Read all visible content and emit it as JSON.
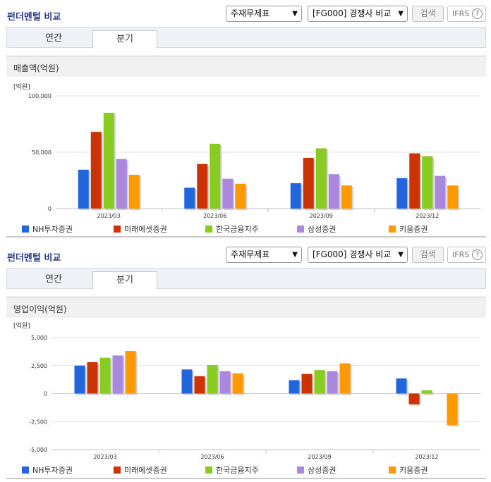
{
  "panels": [
    {
      "title": "펀더멘털 비교",
      "select_1": "주재무제표",
      "select_2": "[FG000] 경쟁사 비교",
      "search_label": "검색",
      "ifrs_label": "IFRS",
      "help_glyph": "?",
      "tabs": [
        {
          "label": "연간"
        },
        {
          "label": "분기"
        }
      ],
      "active_tab": "분기",
      "section_label": "매출액(억원)"
    },
    {
      "title": "펀더멘털 비교",
      "select_1": "주재무제표",
      "select_2": "[FG000] 경쟁사 비교",
      "search_label": "검색",
      "ifrs_label": "IFRS",
      "help_glyph": "?",
      "tabs": [
        {
          "label": "연간"
        },
        {
          "label": "분기"
        }
      ],
      "active_tab": "분기",
      "section_label": "영업이익(억원)"
    }
  ],
  "icons": [
    "chevron-down-icon",
    "help-circle-icon"
  ],
  "chart_data": [
    {
      "type": "bar",
      "unit_label": "[억원]",
      "categories": [
        "2023/03",
        "2023/06",
        "2023/09",
        "2023/12"
      ],
      "ylim": [
        0,
        100000
      ],
      "yticks": [
        "100,000",
        "50,000",
        "0"
      ],
      "ytick_values": [
        100000,
        50000,
        0
      ],
      "grid": true,
      "legend_position": "bottom",
      "series": [
        {
          "name": "NH투자증권",
          "color": "#2266dd",
          "values": [
            34500,
            18500,
            22500,
            27000
          ]
        },
        {
          "name": "미래에셋증권",
          "color": "#cc3300",
          "values": [
            68000,
            39500,
            45000,
            49000
          ]
        },
        {
          "name": "한국금융지주",
          "color": "#88cc22",
          "values": [
            85000,
            57500,
            53500,
            46500
          ]
        },
        {
          "name": "삼성증권",
          "color": "#aa88dd",
          "values": [
            44000,
            26500,
            30500,
            29000
          ]
        },
        {
          "name": "키움증권",
          "color": "#ff9900",
          "values": [
            30000,
            22000,
            20500,
            20500
          ]
        }
      ]
    },
    {
      "type": "bar",
      "unit_label": "[억원]",
      "categories": [
        "2023/03",
        "2023/06",
        "2023/09",
        "2023/12"
      ],
      "ylim": [
        -5000,
        5000
      ],
      "yticks": [
        "5,000",
        "2,500",
        "0",
        "-2,500",
        "-5,000"
      ],
      "ytick_values": [
        5000,
        2500,
        0,
        -2500,
        -5000
      ],
      "grid": true,
      "legend_position": "bottom",
      "series": [
        {
          "name": "NH투자증권",
          "color": "#2266dd",
          "values": [
            2500,
            2150,
            1200,
            1350
          ]
        },
        {
          "name": "미래에셋증권",
          "color": "#cc3300",
          "values": [
            2800,
            1550,
            1750,
            -950
          ]
        },
        {
          "name": "한국금융지주",
          "color": "#88cc22",
          "values": [
            3200,
            2550,
            2100,
            300
          ]
        },
        {
          "name": "삼성증권",
          "color": "#aa88dd",
          "values": [
            3400,
            2000,
            2000,
            0
          ]
        },
        {
          "name": "키움증권",
          "color": "#ff9900",
          "values": [
            3800,
            1800,
            2700,
            -2800
          ]
        }
      ]
    }
  ]
}
